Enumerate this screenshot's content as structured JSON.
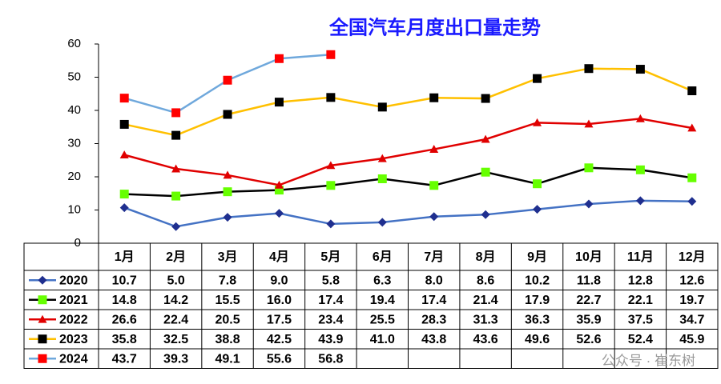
{
  "chart_data": {
    "type": "line",
    "title": "全国汽车月度出口量走势",
    "categories": [
      "1月",
      "2月",
      "3月",
      "4月",
      "5月",
      "6月",
      "7月",
      "8月",
      "9月",
      "10月",
      "11月",
      "12月"
    ],
    "ylim": [
      0,
      60
    ],
    "yticks": [
      0,
      10,
      20,
      30,
      40,
      50,
      60
    ],
    "series": [
      {
        "name": "2020",
        "color": "#4472c4",
        "marker": "diamond",
        "marker_color": "#1f2f8f",
        "values": [
          10.7,
          5.0,
          7.8,
          9.0,
          5.8,
          6.3,
          8.0,
          8.6,
          10.2,
          11.8,
          12.8,
          12.6
        ],
        "value_labels": [
          "10.7",
          "5.0",
          "7.8",
          "9.0",
          "5.8",
          "6.3",
          "8.0",
          "8.6",
          "10.2",
          "11.8",
          "12.8",
          "12.6"
        ]
      },
      {
        "name": "2021",
        "color": "#000000",
        "marker": "square",
        "marker_color": "#66ff00",
        "values": [
          14.8,
          14.2,
          15.5,
          16.0,
          17.4,
          19.4,
          17.4,
          21.4,
          17.9,
          22.7,
          22.1,
          19.7
        ],
        "value_labels": [
          "14.8",
          "14.2",
          "15.5",
          "16.0",
          "17.4",
          "19.4",
          "17.4",
          "21.4",
          "17.9",
          "22.7",
          "22.1",
          "19.7"
        ]
      },
      {
        "name": "2022",
        "color": "#e00000",
        "marker": "triangle",
        "marker_color": "#e00000",
        "values": [
          26.6,
          22.4,
          20.5,
          17.5,
          23.4,
          25.5,
          28.3,
          31.3,
          36.3,
          35.9,
          37.5,
          34.7
        ],
        "value_labels": [
          "26.6",
          "22.4",
          "20.5",
          "17.5",
          "23.4",
          "25.5",
          "28.3",
          "31.3",
          "36.3",
          "35.9",
          "37.5",
          "34.7"
        ]
      },
      {
        "name": "2023",
        "color": "#ffc000",
        "marker": "square",
        "marker_color": "#000000",
        "values": [
          35.8,
          32.5,
          38.8,
          42.5,
          43.9,
          41.0,
          43.8,
          43.6,
          49.6,
          52.6,
          52.4,
          45.9
        ],
        "value_labels": [
          "35.8",
          "32.5",
          "38.8",
          "42.5",
          "43.9",
          "41.0",
          "43.8",
          "43.6",
          "49.6",
          "52.6",
          "52.4",
          "45.9"
        ]
      },
      {
        "name": "2024",
        "color": "#6fa8dc",
        "marker": "square",
        "marker_color": "#ff0000",
        "values": [
          43.7,
          39.3,
          49.1,
          55.6,
          56.8,
          null,
          null,
          null,
          null,
          null,
          null,
          null
        ],
        "value_labels": [
          "43.7",
          "39.3",
          "49.1",
          "55.6",
          "56.8",
          null,
          null,
          null,
          null,
          null,
          null,
          null
        ]
      }
    ],
    "watermark": "公众号 · 崔东树"
  }
}
